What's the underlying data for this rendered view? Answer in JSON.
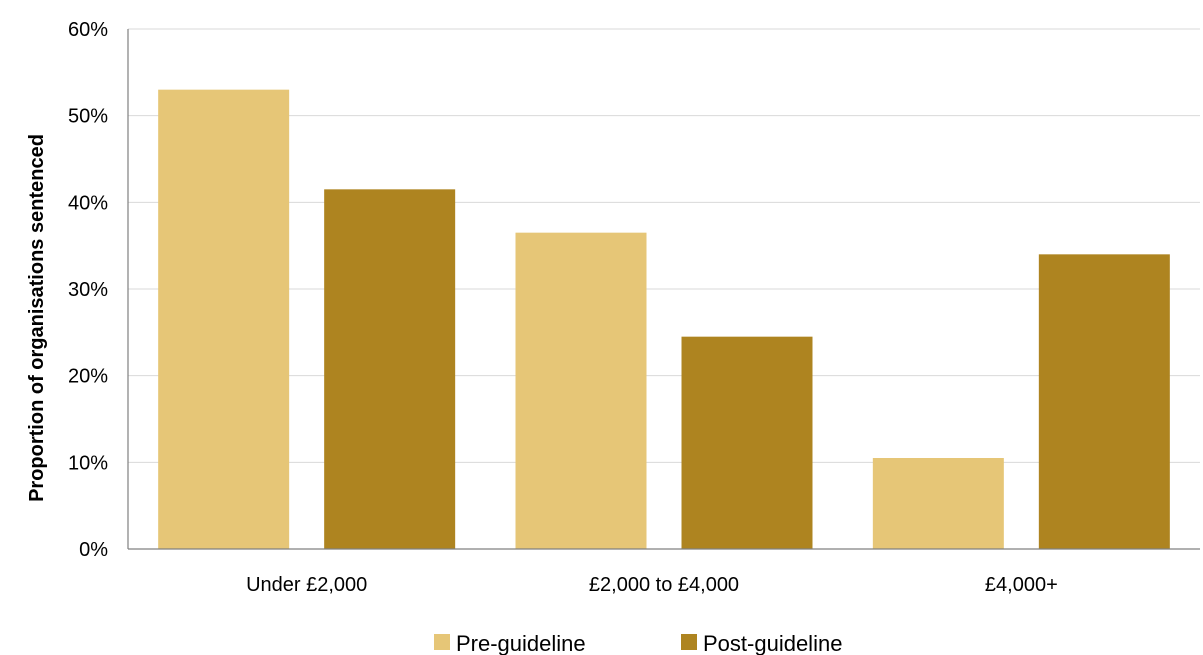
{
  "chart_data": {
    "type": "bar",
    "categories": [
      "Under £2,000",
      "£2,000 to £4,000",
      "£4,000+"
    ],
    "series": [
      {
        "name": "Pre-guideline",
        "values": [
          53,
          36.5,
          10.5
        ],
        "color": "#E6C677"
      },
      {
        "name": "Post-guideline",
        "values": [
          41.5,
          24.5,
          34
        ],
        "color": "#AE8420"
      }
    ],
    "title": "",
    "xlabel": "",
    "ylabel": "Proportion of organisations sentenced",
    "ylim": [
      0,
      60
    ],
    "yticks": [
      0,
      10,
      20,
      30,
      40,
      50,
      60
    ],
    "ytick_labels": [
      "0%",
      "10%",
      "20%",
      "30%",
      "40%",
      "50%",
      "60%"
    ],
    "grid": true,
    "legend_position": "bottom"
  }
}
